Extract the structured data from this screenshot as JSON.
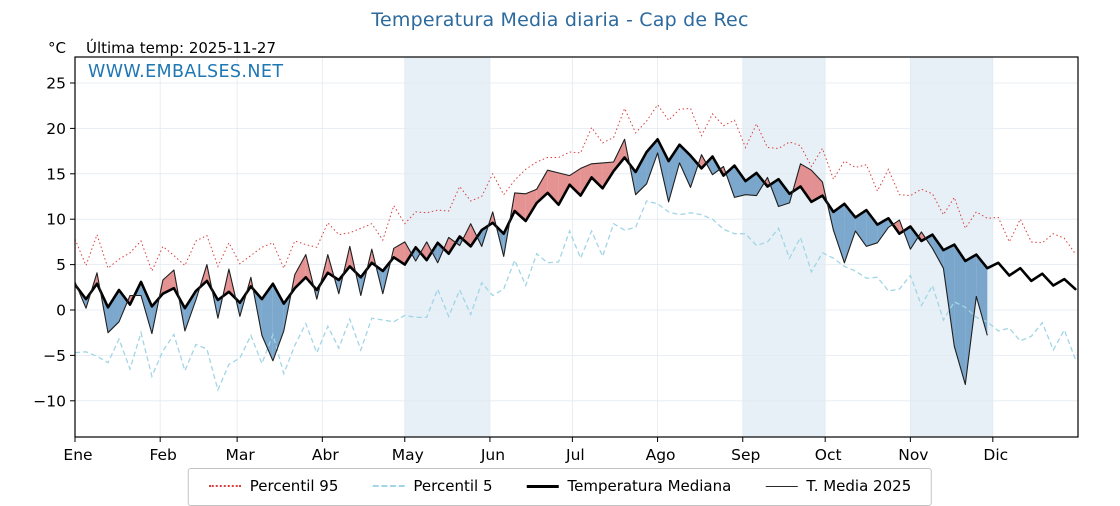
{
  "title": "Temperatura Media diaria - Cap de Rec",
  "watermark": "WWW.EMBALSES.NET",
  "header": {
    "degree_label": "°C",
    "last_temp_label": "Última temp: 2025-11-27"
  },
  "colors": {
    "title": "#2c6a9e",
    "watermark": "#1f77b4",
    "p95": "#d94040",
    "p5": "#a2d5e6",
    "median": "#000000",
    "t2025": "#1f1f1f",
    "fill_above": "#e07f7f",
    "fill_below": "#6699c4",
    "month_band": "#e7f0f7",
    "gridline": "#e2eaf0"
  },
  "chart_data": {
    "type": "line",
    "title": "Temperatura Media diaria - Cap de Rec",
    "xlabel": "",
    "ylabel": "°C",
    "xlim_days": [
      0,
      365
    ],
    "ylim": [
      -14,
      27.9
    ],
    "yticks": [
      -10,
      -5,
      0,
      5,
      10,
      15,
      20,
      25
    ],
    "month_labels": [
      "Ene",
      "Feb",
      "Mar",
      "Abr",
      "May",
      "Jun",
      "Jul",
      "Ago",
      "Sep",
      "Oct",
      "Nov",
      "Dic"
    ],
    "month_start_days": [
      0,
      31,
      59,
      90,
      120,
      151,
      181,
      212,
      243,
      273,
      304,
      334
    ],
    "shaded_month_indices": [
      4,
      8,
      10
    ],
    "x_days": [
      0,
      4,
      8,
      12,
      16,
      20,
      24,
      28,
      32,
      36,
      40,
      44,
      48,
      52,
      56,
      60,
      64,
      68,
      72,
      76,
      80,
      84,
      88,
      92,
      96,
      100,
      104,
      108,
      112,
      116,
      120,
      124,
      128,
      132,
      136,
      140,
      144,
      148,
      152,
      156,
      160,
      164,
      168,
      172,
      176,
      180,
      184,
      188,
      192,
      196,
      200,
      204,
      208,
      212,
      216,
      220,
      224,
      228,
      232,
      236,
      240,
      244,
      248,
      252,
      256,
      260,
      264,
      268,
      272,
      276,
      280,
      284,
      288,
      292,
      296,
      300,
      304,
      308,
      312,
      316,
      320,
      324,
      328,
      332,
      336,
      340,
      344,
      348,
      352,
      356,
      360,
      364
    ],
    "fill_above_color": "#e07f7f",
    "fill_below_color": "#6699c4",
    "band_color": "#e7f0f7",
    "series": [
      {
        "name": "Percentil 95",
        "color": "#d94040",
        "style": "dotted",
        "values": [
          7.8,
          4.9,
          8.3,
          4.6,
          5.6,
          6.3,
          7.6,
          4.3,
          7.0,
          6.0,
          4.9,
          7.6,
          8.2,
          4.8,
          7.4,
          5.1,
          6.0,
          6.9,
          7.4,
          4.6,
          7.6,
          7.2,
          6.9,
          9.6,
          8.3,
          8.5,
          9.0,
          9.5,
          7.7,
          11.5,
          9.5,
          10.8,
          10.7,
          11.0,
          10.9,
          13.6,
          12.0,
          12.5,
          15.0,
          12.7,
          14.3,
          15.5,
          16.3,
          16.8,
          16.8,
          17.4,
          17.3,
          20.1,
          18.4,
          19.0,
          22.2,
          19.5,
          20.8,
          22.6,
          20.9,
          22.1,
          22.2,
          19.2,
          21.6,
          20.3,
          20.9,
          17.9,
          20.5,
          17.9,
          17.8,
          18.5,
          18.1,
          15.8,
          17.8,
          14.4,
          16.4,
          15.7,
          16.0,
          13.1,
          15.5,
          12.7,
          12.6,
          13.3,
          12.8,
          10.5,
          12.4,
          9.0,
          10.8,
          10.1,
          10.2,
          7.5,
          10.0,
          7.5,
          7.4,
          8.4,
          7.9,
          6.2
        ]
      },
      {
        "name": "Percentil 5",
        "color": "#a2d5e6",
        "style": "dashed",
        "values": [
          -4.7,
          -4.6,
          -5.1,
          -5.8,
          -3.2,
          -6.5,
          -2.5,
          -7.3,
          -4.5,
          -2.7,
          -6.7,
          -3.8,
          -4.3,
          -8.8,
          -6.0,
          -5.3,
          -2.8,
          -5.9,
          -2.7,
          -7.0,
          -3.9,
          -1.5,
          -4.7,
          -1.8,
          -4.2,
          -1.0,
          -4.4,
          -0.9,
          -1.1,
          -1.3,
          -0.6,
          -0.8,
          -0.8,
          2.3,
          -0.7,
          2.2,
          -0.5,
          3.0,
          1.6,
          2.3,
          5.5,
          2.7,
          6.2,
          5.2,
          5.3,
          8.7,
          5.7,
          8.7,
          5.9,
          9.5,
          8.8,
          9.1,
          12.0,
          11.7,
          10.8,
          10.5,
          10.7,
          10.5,
          10.0,
          8.9,
          8.4,
          8.4,
          7.1,
          7.5,
          9.0,
          5.7,
          8.0,
          4.2,
          6.3,
          5.7,
          4.8,
          4.3,
          3.5,
          3.6,
          2.1,
          2.3,
          3.8,
          0.5,
          2.7,
          -1.1,
          0.9,
          0.3,
          -0.8,
          -1.3,
          -2.3,
          -2.0,
          -3.4,
          -2.9,
          -1.4,
          -4.4,
          -2.2,
          -5.4
        ]
      },
      {
        "name": "Temperatura Mediana",
        "color": "#000000",
        "style": "solid-thick",
        "values": [
          2.8,
          1.2,
          2.9,
          0.3,
          2.2,
          0.6,
          3.1,
          0.4,
          1.8,
          2.4,
          0.2,
          2.1,
          3.2,
          1.1,
          2.0,
          0.8,
          2.6,
          1.2,
          2.9,
          0.7,
          2.4,
          3.6,
          2.2,
          4.1,
          3.3,
          4.8,
          3.6,
          5.2,
          4.3,
          5.8,
          5.0,
          6.9,
          5.5,
          7.4,
          6.2,
          8.1,
          7.0,
          8.8,
          9.6,
          8.4,
          10.9,
          9.8,
          11.8,
          12.9,
          11.6,
          13.8,
          12.6,
          14.6,
          13.4,
          15.3,
          16.8,
          15.2,
          17.4,
          18.8,
          16.4,
          18.2,
          17.0,
          15.6,
          16.9,
          14.8,
          15.9,
          14.2,
          15.1,
          13.6,
          14.4,
          12.8,
          13.6,
          11.9,
          12.6,
          10.8,
          11.7,
          10.2,
          11.0,
          9.4,
          10.1,
          8.4,
          9.2,
          7.6,
          8.3,
          6.6,
          7.2,
          5.4,
          6.1,
          4.6,
          5.2,
          3.8,
          4.6,
          3.2,
          4.0,
          2.7,
          3.4,
          2.3
        ]
      },
      {
        "name": "T. Media 2025",
        "color": "#1f1f1f",
        "style": "solid-thin",
        "values": [
          3.1,
          0.2,
          4.1,
          -2.5,
          -1.3,
          1.6,
          1.6,
          -2.6,
          3.3,
          4.4,
          -2.3,
          1.1,
          5.0,
          -0.9,
          4.5,
          -0.7,
          3.6,
          -2.8,
          -5.6,
          -2.3,
          3.9,
          6.1,
          1.2,
          6.1,
          1.8,
          7.0,
          1.6,
          6.7,
          1.8,
          6.8,
          7.5,
          5.4,
          7.5,
          5.2,
          8.0,
          7.1,
          9.5,
          7.0,
          10.8,
          5.9,
          12.9,
          12.8,
          13.3,
          15.4,
          15.1,
          14.8,
          15.6,
          16.1,
          16.2,
          16.3,
          18.8,
          12.7,
          13.9,
          17.3,
          11.9,
          16.2,
          13.5,
          17.1,
          14.9,
          15.8,
          12.4,
          12.7,
          12.6,
          14.6,
          11.4,
          11.8,
          16.1,
          15.4,
          14.1,
          8.8,
          5.2,
          8.7,
          7.0,
          7.4,
          9.1,
          9.9,
          6.7,
          8.6,
          6.8,
          4.6,
          -4.0,
          -8.2,
          1.5,
          -2.8,
          null,
          null,
          null,
          null,
          null,
          null,
          null,
          null
        ]
      }
    ],
    "legend_position": "bottom-center",
    "grid": true
  }
}
